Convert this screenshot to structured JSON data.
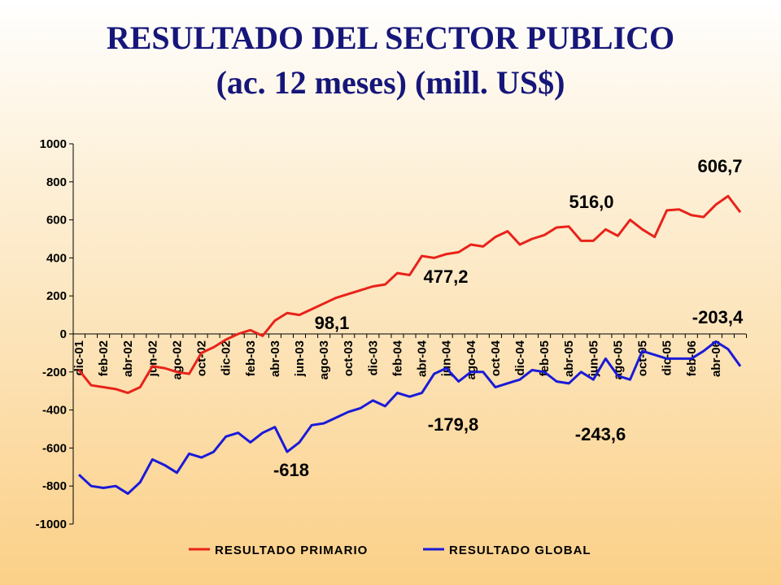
{
  "chart_data": {
    "type": "line",
    "title": "RESULTADO DEL SECTOR PUBLICO",
    "subtitle": "(ac. 12 meses) (mill. US$)",
    "categories": [
      "dic-01",
      null,
      "feb-02",
      null,
      "abr-02",
      null,
      "jun-02",
      null,
      "ago-02",
      null,
      "oct-02",
      null,
      "dic-02",
      null,
      "feb-03",
      null,
      "abr-03",
      null,
      "jun-03",
      null,
      "ago-03",
      null,
      "oct-03",
      null,
      "dic-03",
      null,
      "feb-04",
      null,
      "abr-04",
      null,
      "jun-04",
      null,
      "ago-04",
      null,
      "oct-04",
      null,
      "dic-04",
      null,
      "feb-05",
      null,
      "abr-05",
      null,
      "jun-05",
      null,
      "ago-05",
      null,
      "oct-05",
      null,
      "dic-05",
      null,
      "feb-06",
      null,
      "abr-06",
      null,
      null
    ],
    "series": [
      {
        "name": "RESULTADO PRIMARIO",
        "color": "#e8231a",
        "values": [
          -190,
          -270,
          -280,
          -290,
          -310,
          -280,
          -170,
          -180,
          -200,
          -210,
          -100,
          -70,
          -30,
          0,
          20,
          -10,
          70,
          110,
          100,
          130,
          160,
          190,
          210,
          230,
          250,
          260,
          320,
          310,
          410,
          400,
          420,
          430,
          470,
          460,
          510,
          540,
          470,
          500,
          520,
          560,
          565,
          490,
          490,
          550,
          516,
          600,
          550,
          510,
          650,
          655,
          625,
          615,
          680,
          725,
          640
        ]
      },
      {
        "name": "RESULTADO GLOBAL",
        "color": "#1a1ad8",
        "values": [
          -740,
          -800,
          -810,
          -800,
          -840,
          -780,
          -660,
          -690,
          -730,
          -630,
          -650,
          -620,
          -540,
          -520,
          -570,
          -520,
          -490,
          -620,
          -570,
          -480,
          -470,
          -440,
          -410,
          -390,
          -350,
          -380,
          -310,
          -330,
          -310,
          -210,
          -180,
          -250,
          -200,
          -200,
          -280,
          -260,
          -240,
          -190,
          -200,
          -250,
          -260,
          -200,
          -240,
          -130,
          -220,
          -240,
          -90,
          -110,
          -130,
          -130,
          -130,
          -90,
          -40,
          -80,
          -170
        ]
      }
    ],
    "ylim": [
      -1000,
      1000
    ],
    "yticks": [
      -1000,
      -800,
      -600,
      -400,
      -200,
      0,
      200,
      400,
      600,
      800,
      1000
    ],
    "annotations": [
      "606,7",
      "516,0",
      "477,2",
      "98,1",
      "-203,4",
      "-179,8",
      "-243,6",
      "-618"
    ]
  }
}
